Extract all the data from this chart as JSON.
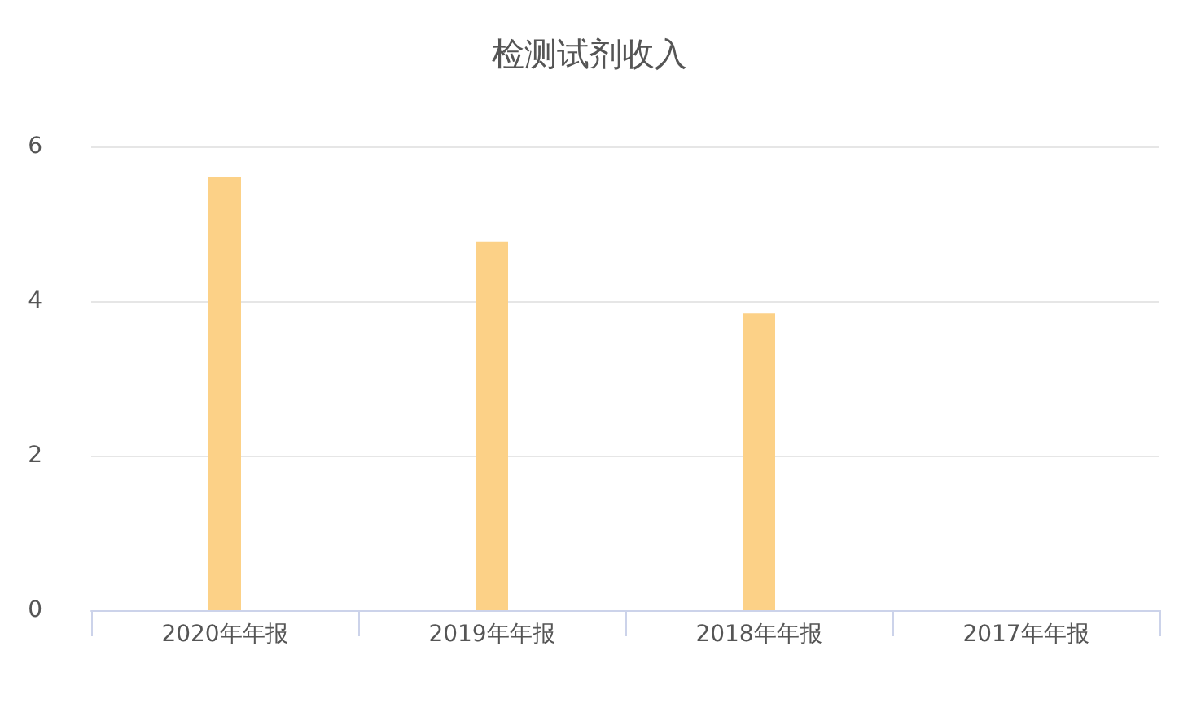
{
  "chart_data": {
    "type": "bar",
    "title": "检测试剂收入",
    "categories": [
      "2020年年报",
      "2019年年报",
      "2018年年报",
      "2017年年报"
    ],
    "values": [
      5.6,
      4.77,
      3.84,
      null
    ],
    "color": "#fcd187",
    "ylim": [
      0,
      6
    ],
    "yticks": [
      0,
      2,
      4,
      6
    ],
    "grid": "y"
  }
}
